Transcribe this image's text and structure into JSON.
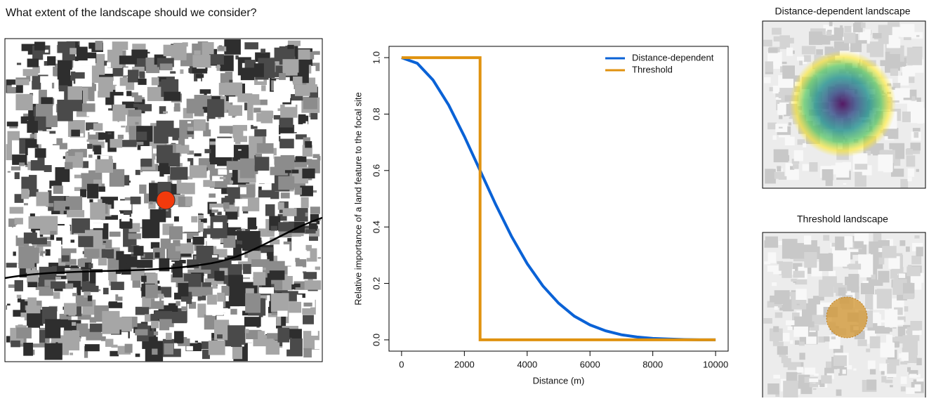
{
  "header": {
    "title": "What extent of the landscape should we consider?"
  },
  "maps": {
    "distance_title": "Distance-dependent landscape",
    "threshold_title": "Threshold landscape"
  },
  "chart_data": {
    "type": "line",
    "xlabel": "Distance (m)",
    "ylabel": "Relative importance of a land feature to the focal site",
    "xlim": [
      -400,
      10400
    ],
    "ylim": [
      -0.04,
      1.04
    ],
    "xticks": [
      0,
      2000,
      4000,
      6000,
      8000,
      10000
    ],
    "yticks": [
      {
        "value": 0,
        "label": "0.0"
      },
      0.2,
      0.4,
      0.6,
      0.8,
      {
        "value": 1,
        "label": "1.0"
      }
    ],
    "legend": "top-right",
    "series": [
      {
        "name": "Distance-dependent",
        "color": "#0a62d6",
        "x": [
          0,
          500,
          1000,
          1500,
          2000,
          2500,
          3000,
          3500,
          4000,
          4500,
          5000,
          5500,
          6000,
          6500,
          7000,
          7500,
          8000,
          8500,
          9000,
          9500,
          10000
        ],
        "values": [
          1,
          0.98,
          0.921,
          0.832,
          0.721,
          0.6,
          0.479,
          0.367,
          0.27,
          0.191,
          0.13,
          0.084,
          0.053,
          0.032,
          0.018,
          0.01,
          0.005,
          0.003,
          0.001,
          0,
          0
        ]
      },
      {
        "name": "Threshold",
        "color": "#e0920f",
        "x": [
          0,
          2500,
          2500,
          10000
        ],
        "values": [
          1,
          1,
          0,
          0
        ]
      }
    ]
  }
}
